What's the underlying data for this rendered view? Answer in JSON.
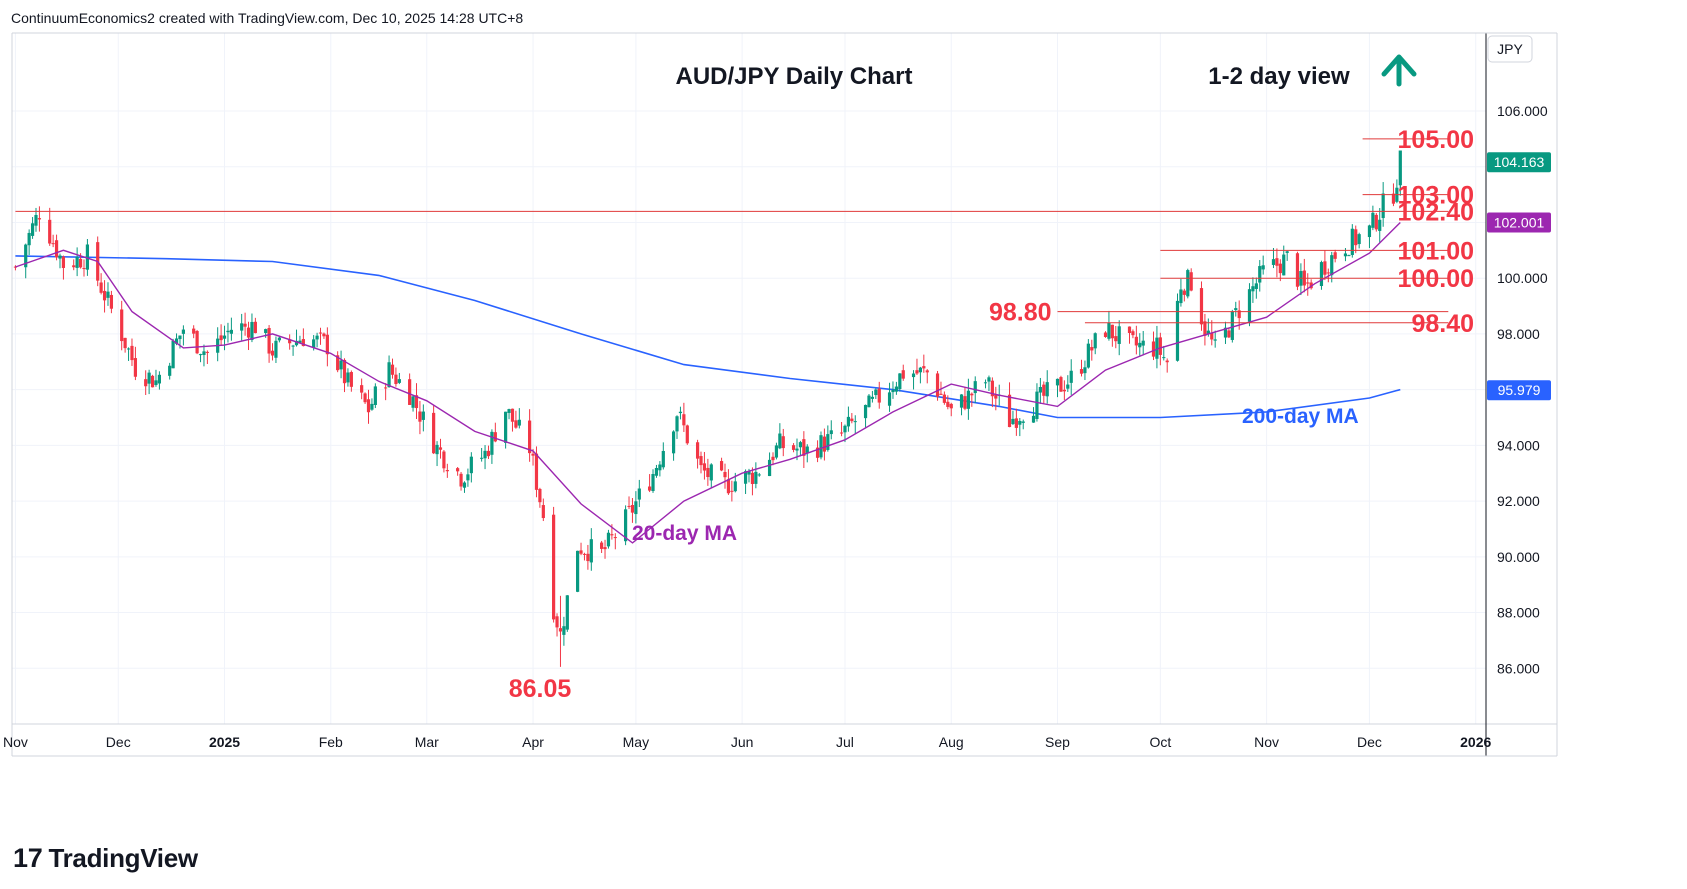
{
  "header": {
    "attribution": "ContinuumEconomics2 created with TradingView.com, Dec 10, 2025 14:28 UTC+8"
  },
  "footer": {
    "logo_mark": "17",
    "logo_text": "TradingView"
  },
  "chart_data": {
    "type": "candlestick",
    "title": "AUD/JPY Daily Chart",
    "view_label": "1-2 day view",
    "view_direction": "up",
    "currency_label": "JPY",
    "ylim": [
      84.0,
      108.8
    ],
    "y_ticks": [
      {
        "value": 86,
        "label": "86.000"
      },
      {
        "value": 88,
        "label": "88.000"
      },
      {
        "value": 90,
        "label": "90.000"
      },
      {
        "value": 92,
        "label": "92.000"
      },
      {
        "value": 94,
        "label": "94.000"
      },
      {
        "value": 96,
        "label": "96.000"
      },
      {
        "value": 98,
        "label": "98.000"
      },
      {
        "value": 100,
        "label": "100.000"
      },
      {
        "value": 102,
        "label": "102.000"
      },
      {
        "value": 104,
        "label": "104.000"
      },
      {
        "value": 106,
        "label": "106.000"
      }
    ],
    "x_ticks": [
      {
        "date": "2024-11-01",
        "label": "Nov"
      },
      {
        "date": "2024-12-01",
        "label": "Dec"
      },
      {
        "date": "2025-01-01",
        "label": "2025"
      },
      {
        "date": "2025-02-01",
        "label": "Feb"
      },
      {
        "date": "2025-03-01",
        "label": "Mar"
      },
      {
        "date": "2025-04-01",
        "label": "Apr"
      },
      {
        "date": "2025-05-01",
        "label": "May"
      },
      {
        "date": "2025-06-01",
        "label": "Jun"
      },
      {
        "date": "2025-07-01",
        "label": "Jul"
      },
      {
        "date": "2025-08-01",
        "label": "Aug"
      },
      {
        "date": "2025-09-01",
        "label": "Sep"
      },
      {
        "date": "2025-10-01",
        "label": "Oct"
      },
      {
        "date": "2025-11-01",
        "label": "Nov"
      },
      {
        "date": "2025-12-01",
        "label": "Dec"
      },
      {
        "date": "2026-01-01",
        "label": "2026"
      }
    ],
    "anchors": [
      {
        "date": "2024-11-01",
        "close": 100.4
      },
      {
        "date": "2024-11-08",
        "close": 102.4
      },
      {
        "date": "2024-11-15",
        "close": 100.5
      },
      {
        "date": "2024-11-22",
        "close": 100.8
      },
      {
        "date": "2024-12-01",
        "close": 98.3
      },
      {
        "date": "2024-12-06",
        "close": 96.8
      },
      {
        "date": "2024-12-12",
        "close": 96.3
      },
      {
        "date": "2024-12-20",
        "close": 98.2
      },
      {
        "date": "2024-12-27",
        "close": 97.3
      },
      {
        "date": "2025-01-03",
        "close": 98.2
      },
      {
        "date": "2025-01-10",
        "close": 98.3
      },
      {
        "date": "2025-01-15",
        "close": 97.4
      },
      {
        "date": "2025-01-24",
        "close": 97.9
      },
      {
        "date": "2025-01-31",
        "close": 97.6
      },
      {
        "date": "2025-02-06",
        "close": 96.2
      },
      {
        "date": "2025-02-12",
        "close": 95.3
      },
      {
        "date": "2025-02-18",
        "close": 96.7
      },
      {
        "date": "2025-02-24",
        "close": 95.9
      },
      {
        "date": "2025-03-04",
        "close": 93.9
      },
      {
        "date": "2025-03-11",
        "close": 92.9
      },
      {
        "date": "2025-03-18",
        "close": 93.7
      },
      {
        "date": "2025-03-24",
        "close": 95.3
      },
      {
        "date": "2025-03-31",
        "close": 93.9
      },
      {
        "date": "2025-04-04",
        "close": 91.5
      },
      {
        "date": "2025-04-07",
        "close": 88.2
      },
      {
        "date": "2025-04-09",
        "close": 87.2
      },
      {
        "date": "2025-04-14",
        "close": 90.4
      },
      {
        "date": "2025-04-21",
        "close": 90.1
      },
      {
        "date": "2025-04-28",
        "close": 91.3
      },
      {
        "date": "2025-05-06",
        "close": 93.0
      },
      {
        "date": "2025-05-13",
        "close": 95.2
      },
      {
        "date": "2025-05-20",
        "close": 93.1
      },
      {
        "date": "2025-05-27",
        "close": 92.6
      },
      {
        "date": "2025-06-05",
        "close": 93.0
      },
      {
        "date": "2025-06-12",
        "close": 94.0
      },
      {
        "date": "2025-06-20",
        "close": 93.8
      },
      {
        "date": "2025-06-30",
        "close": 94.4
      },
      {
        "date": "2025-07-10",
        "close": 95.6
      },
      {
        "date": "2025-07-18",
        "close": 96.6
      },
      {
        "date": "2025-07-25",
        "close": 96.6
      },
      {
        "date": "2025-08-01",
        "close": 95.2
      },
      {
        "date": "2025-08-11",
        "close": 96.3
      },
      {
        "date": "2025-08-18",
        "close": 94.9
      },
      {
        "date": "2025-08-25",
        "close": 95.5
      },
      {
        "date": "2025-09-05",
        "close": 96.4
      },
      {
        "date": "2025-09-15",
        "close": 98.2
      },
      {
        "date": "2025-09-22",
        "close": 97.6
      },
      {
        "date": "2025-09-30",
        "close": 97.5
      },
      {
        "date": "2025-10-03",
        "close": 97.0
      },
      {
        "date": "2025-10-07",
        "close": 99.8
      },
      {
        "date": "2025-10-10",
        "close": 99.9
      },
      {
        "date": "2025-10-14",
        "close": 98.2
      },
      {
        "date": "2025-10-17",
        "close": 97.4
      },
      {
        "date": "2025-10-24",
        "close": 98.9
      },
      {
        "date": "2025-10-31",
        "close": 100.2
      },
      {
        "date": "2025-11-07",
        "close": 100.7
      },
      {
        "date": "2025-11-12",
        "close": 99.6
      },
      {
        "date": "2025-11-17",
        "close": 100.4
      },
      {
        "date": "2025-11-24",
        "close": 101.2
      },
      {
        "date": "2025-12-01",
        "close": 101.7
      },
      {
        "date": "2025-12-05",
        "close": 102.6
      },
      {
        "date": "2025-12-08",
        "close": 103.1
      },
      {
        "date": "2025-12-10",
        "close": 104.16
      }
    ],
    "last_price": {
      "value": 104.163,
      "label": "104.163"
    },
    "series": [
      {
        "name": "20-day MA",
        "color": "#9c27b0",
        "current": {
          "value": 102.001,
          "label": "102.001"
        },
        "points": [
          {
            "date": "2024-11-01",
            "value": 100.4
          },
          {
            "date": "2024-11-15",
            "value": 101.0
          },
          {
            "date": "2024-11-25",
            "value": 100.6
          },
          {
            "date": "2024-12-05",
            "value": 98.8
          },
          {
            "date": "2024-12-20",
            "value": 97.5
          },
          {
            "date": "2025-01-01",
            "value": 97.6
          },
          {
            "date": "2025-01-15",
            "value": 98.0
          },
          {
            "date": "2025-02-01",
            "value": 97.3
          },
          {
            "date": "2025-02-15",
            "value": 96.3
          },
          {
            "date": "2025-03-01",
            "value": 95.6
          },
          {
            "date": "2025-03-15",
            "value": 94.5
          },
          {
            "date": "2025-04-01",
            "value": 93.8
          },
          {
            "date": "2025-04-15",
            "value": 91.9
          },
          {
            "date": "2025-04-30",
            "value": 90.5
          },
          {
            "date": "2025-05-15",
            "value": 92.0
          },
          {
            "date": "2025-06-01",
            "value": 93.0
          },
          {
            "date": "2025-06-15",
            "value": 93.5
          },
          {
            "date": "2025-07-01",
            "value": 94.2
          },
          {
            "date": "2025-07-15",
            "value": 95.2
          },
          {
            "date": "2025-08-01",
            "value": 96.2
          },
          {
            "date": "2025-08-15",
            "value": 95.8
          },
          {
            "date": "2025-09-01",
            "value": 95.4
          },
          {
            "date": "2025-09-15",
            "value": 96.7
          },
          {
            "date": "2025-10-01",
            "value": 97.5
          },
          {
            "date": "2025-10-15",
            "value": 98.0
          },
          {
            "date": "2025-11-01",
            "value": 98.6
          },
          {
            "date": "2025-11-15",
            "value": 99.8
          },
          {
            "date": "2025-12-01",
            "value": 100.9
          },
          {
            "date": "2025-12-10",
            "value": 102.0
          }
        ]
      },
      {
        "name": "200-day MA",
        "color": "#2962ff",
        "current": {
          "value": 95.979,
          "label": "95.979"
        },
        "points": [
          {
            "date": "2024-11-01",
            "value": 100.8
          },
          {
            "date": "2024-12-15",
            "value": 100.7
          },
          {
            "date": "2025-01-15",
            "value": 100.6
          },
          {
            "date": "2025-02-15",
            "value": 100.1
          },
          {
            "date": "2025-03-15",
            "value": 99.2
          },
          {
            "date": "2025-04-15",
            "value": 98.0
          },
          {
            "date": "2025-05-15",
            "value": 96.9
          },
          {
            "date": "2025-06-15",
            "value": 96.4
          },
          {
            "date": "2025-07-15",
            "value": 96.0
          },
          {
            "date": "2025-08-15",
            "value": 95.4
          },
          {
            "date": "2025-09-01",
            "value": 95.0
          },
          {
            "date": "2025-10-01",
            "value": 95.0
          },
          {
            "date": "2025-11-01",
            "value": 95.2
          },
          {
            "date": "2025-12-01",
            "value": 95.7
          },
          {
            "date": "2025-12-10",
            "value": 96.0
          }
        ]
      }
    ],
    "levels": [
      {
        "label": "105.00",
        "value": 105.0,
        "start": "2025-11-29",
        "end": "2025-12-24"
      },
      {
        "label": "103.00",
        "value": 103.0,
        "start": "2025-11-29",
        "end": "2025-12-24"
      },
      {
        "label": "102.40",
        "value": 102.4,
        "start": "2024-11-01",
        "end": "2025-12-24"
      },
      {
        "label": "101.00",
        "value": 101.0,
        "start": "2025-10-01",
        "end": "2025-12-24"
      },
      {
        "label": "100.00",
        "value": 100.0,
        "start": "2025-10-01",
        "end": "2025-12-24"
      },
      {
        "label": "98.80",
        "value": 98.8,
        "start": "2025-09-01",
        "end": "2025-12-24"
      },
      {
        "label": "98.40",
        "value": 98.4,
        "start": "2025-09-09",
        "end": "2025-12-24"
      }
    ],
    "annotations": [
      {
        "text": "86.05",
        "value": 86.05,
        "date": "2025-04-09"
      },
      {
        "text": "20-day MA",
        "series": "20-day MA"
      },
      {
        "text": "200-day MA",
        "series": "200-day MA"
      }
    ],
    "colors": {
      "up": "#089981",
      "down": "#f23645",
      "level_text": "#f23645",
      "arrow": "#089981",
      "grid": "#f0f3fa",
      "axis": "#131722"
    },
    "grid": true
  }
}
